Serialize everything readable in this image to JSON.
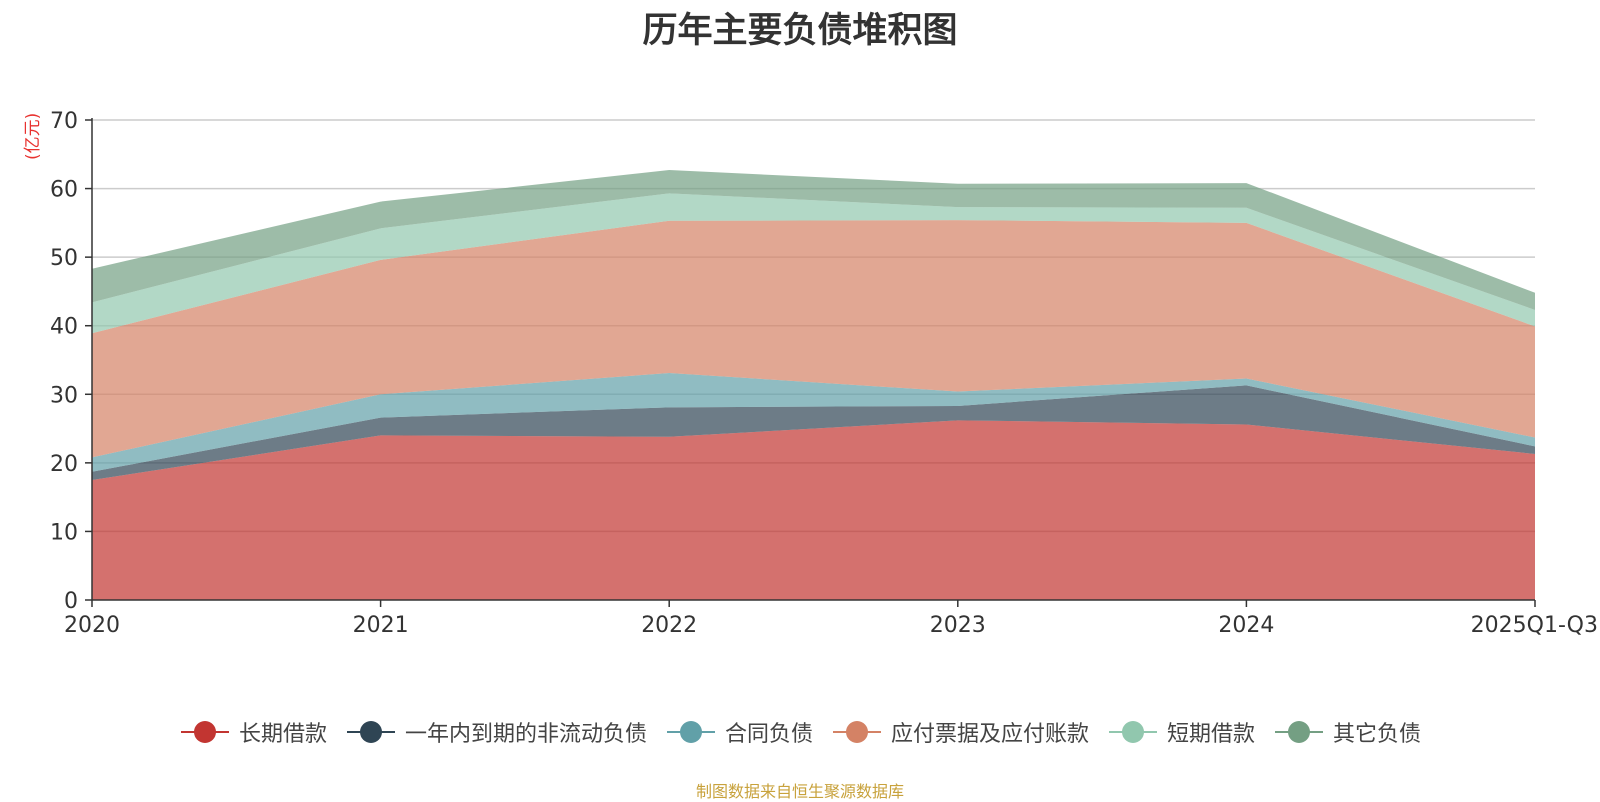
{
  "title": "历年主要负债堆积图",
  "unit": "(亿元)",
  "source": "制图数据来自恒生聚源数据库",
  "colors": [
    "#c23531",
    "#2f4554",
    "#61a0a8",
    "#d48265",
    "#91c7ae",
    "#749f83"
  ],
  "chart_data": {
    "type": "area",
    "stacked": true,
    "title": "历年主要负债堆积图",
    "ylabel": "(亿元)",
    "ylim": [
      0,
      70
    ],
    "yticks": [
      0,
      10,
      20,
      30,
      40,
      50,
      60,
      70
    ],
    "grid": true,
    "legend_position": "bottom",
    "categories": [
      "2020",
      "2021",
      "2022",
      "2023",
      "2024",
      "2025Q1-Q3"
    ],
    "series": [
      {
        "name": "长期借款",
        "values": [
          17.5,
          24.0,
          23.8,
          26.2,
          25.6,
          21.3
        ]
      },
      {
        "name": "一年内到期的非流动负债",
        "values": [
          1.2,
          2.6,
          4.3,
          2.1,
          5.7,
          1.1
        ]
      },
      {
        "name": "合同负债",
        "values": [
          2.1,
          3.4,
          5.0,
          2.1,
          1.0,
          1.3
        ]
      },
      {
        "name": "应付票据及应付账款",
        "values": [
          18.1,
          19.6,
          22.2,
          25.0,
          22.7,
          16.2
        ]
      },
      {
        "name": "短期借款",
        "values": [
          4.5,
          4.6,
          4.0,
          1.9,
          2.2,
          2.4
        ]
      },
      {
        "name": "其它负债",
        "values": [
          4.9,
          3.9,
          3.4,
          3.4,
          3.6,
          2.5
        ]
      }
    ]
  }
}
